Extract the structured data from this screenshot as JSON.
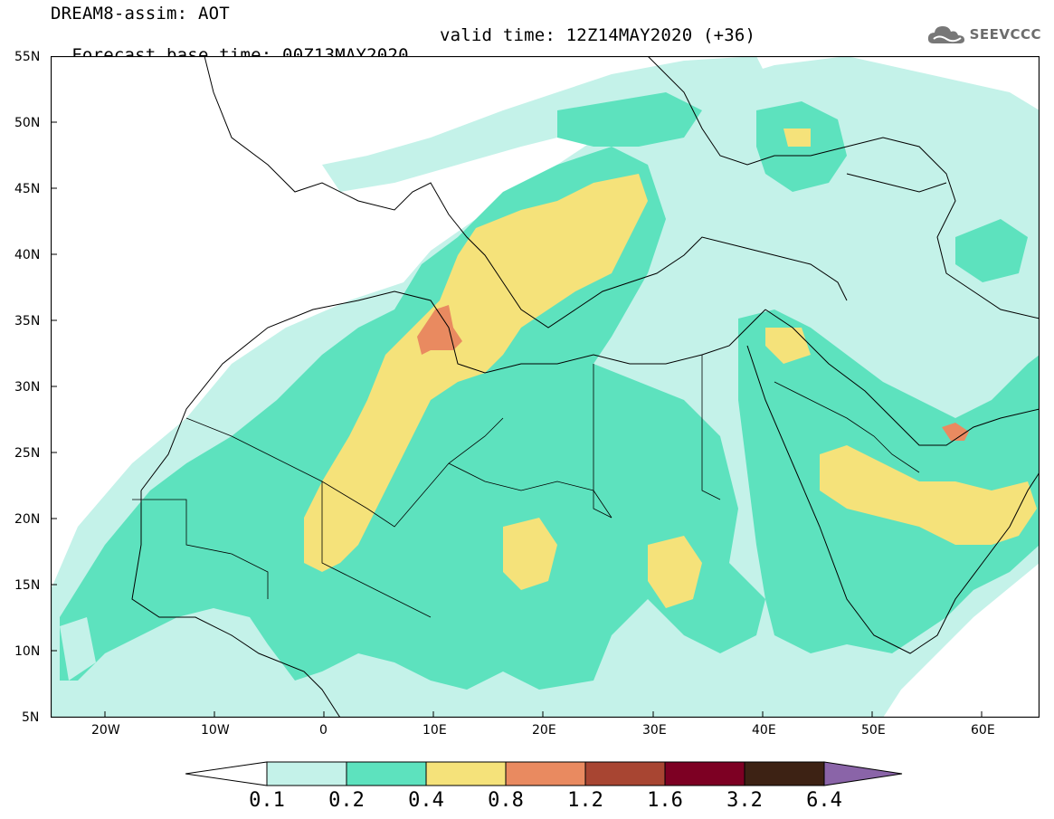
{
  "header": {
    "model_title": "DREAM8-assim: AOT",
    "base_time": "Forecast base time: 00Z13MAY2020",
    "valid_time": "valid time: 12Z14MAY2020 (+36)"
  },
  "logo": {
    "text": "SEEVCCC",
    "icon": "cloud-icon"
  },
  "axes": {
    "lat_labels": [
      "55N",
      "50N",
      "45N",
      "40N",
      "35N",
      "30N",
      "25N",
      "20N",
      "15N",
      "10N",
      "5N"
    ],
    "lon_labels": [
      "20W",
      "10W",
      "0",
      "10E",
      "20E",
      "30E",
      "40E",
      "50E",
      "60E"
    ],
    "lat_range": [
      5,
      55
    ],
    "lon_range": [
      -25,
      65
    ]
  },
  "colorbar": {
    "thresholds": [
      "0.1",
      "0.2",
      "0.4",
      "0.8",
      "1.2",
      "1.6",
      "3.2",
      "6.4"
    ],
    "colors": [
      "#ffffff",
      "#c4f2e9",
      "#5de2be",
      "#f5e27a",
      "#e98a60",
      "#a84532",
      "#7d0023",
      "#3d2214",
      "#8a64a8"
    ]
  },
  "map": {
    "type": "aerosol-optical-thickness",
    "colors": {
      "light": "#c4f2e9",
      "medium": "#5de2be",
      "yellow": "#f5e27a",
      "orange": "#e98a60",
      "sea": "#ffffff",
      "coast": "#000000"
    }
  }
}
